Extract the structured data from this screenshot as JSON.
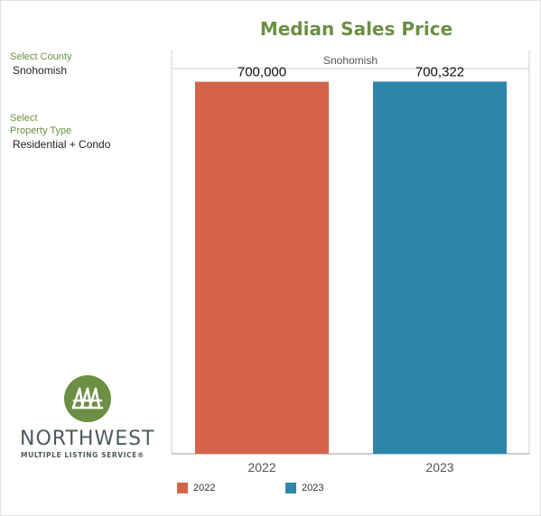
{
  "title": "Median Sales Price",
  "filters": {
    "county_label": "Select County",
    "county_value": "Snohomish",
    "property_label_line1": "Select",
    "property_label_line2": "Property Type",
    "property_value": "Residential + Condo"
  },
  "logo": {
    "wordmark": "NORTHWEST",
    "tagline": "MULTIPLE LISTING SERVICE®"
  },
  "colors": {
    "accent_green": "#6b8f43",
    "bar_2022": "#d4634a",
    "bar_2023": "#2e86ab"
  },
  "chart_data": {
    "type": "bar",
    "panel_label": "Snohomish",
    "categories": [
      "2022",
      "2023"
    ],
    "values": [
      700000,
      700322
    ],
    "data_labels": [
      "700,000",
      "700,322"
    ],
    "colors": [
      "#d4634a",
      "#2e86ab"
    ],
    "title": "Median Sales Price",
    "xlabel": "",
    "ylabel": "",
    "ylim": [
      0,
      752000
    ],
    "grid": false,
    "legend_position": "bottom",
    "legend": [
      {
        "label": "2022",
        "color": "#d4634a"
      },
      {
        "label": "2023",
        "color": "#2e86ab"
      }
    ]
  }
}
